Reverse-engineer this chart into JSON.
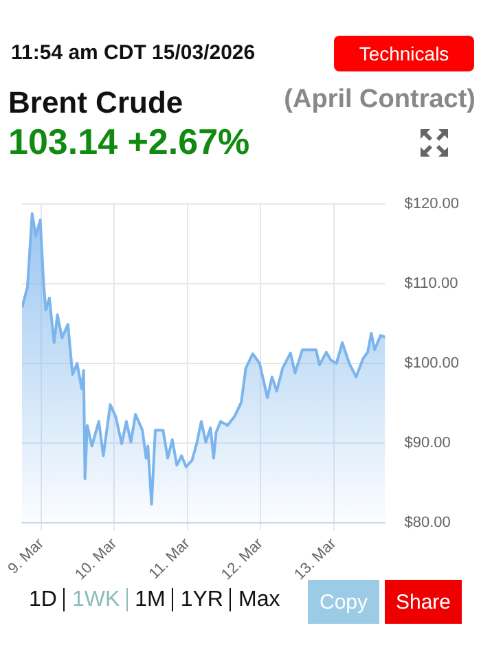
{
  "chart_data": {
    "type": "area",
    "title": "Brent Crude",
    "subtitle": "(April Contract)",
    "annotations": [
      "11:54 am CDT 15/03/2026",
      "103.14 +2.67%",
      "Technicals",
      "1D",
      "1WK",
      "1M",
      "1YR",
      "Max",
      "Copy",
      "Share"
    ],
    "x": [
      "2026-03-08T17:40",
      "2026-03-08T19:28",
      "2026-03-08T21:00",
      "2026-03-08T22:12",
      "2026-03-08T23:40",
      "2026-03-09T00:45",
      "2026-03-09T01:30",
      "2026-03-09T02:40",
      "2026-03-09T04:12",
      "2026-03-09T05:18",
      "2026-03-09T06:48",
      "2026-03-09T08:45",
      "2026-03-09T10:16",
      "2026-03-09T11:46",
      "2026-03-09T13:16",
      "2026-03-09T13:54",
      "2026-03-09T14:21",
      "2026-03-09T15:05",
      "2026-03-09T16:37",
      "2026-03-09T18:53",
      "2026-03-09T20:23",
      "2026-03-09T22:38",
      "2026-03-10T00:27",
      "2026-03-10T02:24",
      "2026-03-10T03:56",
      "2026-03-10T05:26",
      "2026-03-10T06:56",
      "2026-03-10T09:12",
      "2026-03-10T10:25",
      "2026-03-10T11:00",
      "2026-03-10T12:13",
      "2026-03-10T13:26",
      "2026-03-10T15:59",
      "2026-03-10T17:31",
      "2026-03-10T19:01",
      "2026-03-10T20:31",
      "2026-03-10T22:03",
      "2026-03-10T23:33",
      "2026-03-11T01:29",
      "2026-03-11T03:01",
      "2026-03-11T04:32",
      "2026-03-11T06:01",
      "2026-03-11T07:34",
      "2026-03-11T08:36",
      "2026-03-11T09:23",
      "2026-03-11T10:52",
      "2026-03-11T13:08",
      "2026-03-11T15:24",
      "2026-03-11T17:40",
      "2026-03-11T19:09",
      "2026-03-11T21:25",
      "2026-03-11T23:41",
      "2026-03-12T02:15",
      "2026-03-12T03:46",
      "2026-03-12T05:18",
      "2026-03-12T07:15",
      "2026-03-12T09:49",
      "2026-03-12T11:19",
      "2026-03-12T13:44",
      "2026-03-12T18:14",
      "2026-03-12T19:20",
      "2026-03-12T21:36",
      "2026-03-12T23:05",
      "2026-03-13T00:55",
      "2026-03-13T02:51",
      "2026-03-13T05:07",
      "2026-03-13T07:23",
      "2026-03-13T09:39",
      "2026-03-13T11:11",
      "2026-03-13T12:22",
      "2026-03-13T13:26",
      "2026-03-13T15:24",
      "2026-03-13T16:54"
    ],
    "series": [
      {
        "color": "#7cb5ec",
        "values": [
          107,
          109.6,
          118.8,
          116,
          118,
          110.1,
          106.7,
          108.2,
          102.6,
          106.1,
          103.2,
          104.9,
          98.6,
          100,
          96.8,
          99.1,
          85.5,
          92.2,
          89.6,
          92.7,
          88.4,
          94.8,
          93.3,
          89.9,
          92.7,
          90.1,
          93.6,
          91.6,
          88.1,
          89.6,
          82.3,
          91.6,
          91.6,
          88.1,
          90.4,
          87.2,
          88.4,
          87,
          87.8,
          89.9,
          92.7,
          90.1,
          91.9,
          88.1,
          91.3,
          92.7,
          92.2,
          93.3,
          95.1,
          99.4,
          101.2,
          100,
          95.7,
          98.3,
          96.5,
          99.4,
          101.3,
          98.8,
          101.7,
          101.7,
          99.8,
          101.4,
          100.4,
          100,
          102.6,
          100,
          98.3,
          100.6,
          101.4,
          103.8,
          101.7,
          103.5,
          103.3
        ]
      }
    ],
    "xlim": [
      "2026-03-08T17:40",
      "2026-03-13T16:54"
    ],
    "xticks": [
      {
        "value": "2026-03-09",
        "label": "9. Mar"
      },
      {
        "value": "2026-03-10",
        "label": "10. Mar"
      },
      {
        "value": "2026-03-11",
        "label": "11. Mar"
      },
      {
        "value": "2026-03-12",
        "label": "12. Mar"
      },
      {
        "value": "2026-03-13",
        "label": "13. Mar"
      }
    ],
    "ylim": [
      80,
      120
    ],
    "yticks": [
      {
        "value": 80,
        "label": "$80.00"
      },
      {
        "value": 90,
        "label": "$90.00"
      },
      {
        "value": 100,
        "label": "$100.00"
      },
      {
        "value": 110,
        "label": "$110.00"
      },
      {
        "value": 120,
        "label": "$120.00"
      }
    ],
    "grid": true,
    "legend": false,
    "marker": "none",
    "line_style": "solid"
  }
}
